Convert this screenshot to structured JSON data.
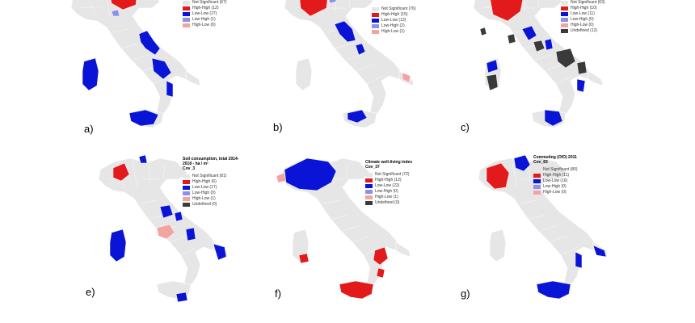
{
  "colors": {
    "not_significant": "#e6e6e6",
    "high_high": "#e31a1c",
    "low_low": "#0a14d6",
    "low_high": "#8a91e8",
    "high_low": "#f4a3a3",
    "undefined": "#3a3a3a"
  },
  "panels": [
    {
      "id": "a",
      "letter": "a)",
      "title": "",
      "subtitle": "",
      "legend": [
        {
          "key": "not_significant",
          "label": "Not Significant (67)"
        },
        {
          "key": "high_high",
          "label": "High-High (12)"
        },
        {
          "key": "low_low",
          "label": "Low-Low (27)"
        },
        {
          "key": "low_high",
          "label": "Low-High (1)"
        },
        {
          "key": "high_low",
          "label": "High-Low (0)"
        }
      ]
    },
    {
      "id": "b",
      "letter": "b)",
      "title": "",
      "subtitle": "",
      "legend": [
        {
          "key": "not_significant",
          "label": "Not Significant (76)"
        },
        {
          "key": "high_high",
          "label": "High-High (15)"
        },
        {
          "key": "low_low",
          "label": "Low-Low (13)"
        },
        {
          "key": "low_high",
          "label": "Low-High (2)"
        },
        {
          "key": "high_low",
          "label": "High-Low (1)"
        }
      ]
    },
    {
      "id": "c",
      "letter": "c)",
      "title": "",
      "subtitle": "",
      "legend": [
        {
          "key": "not_significant",
          "label": "Not Significant (63)"
        },
        {
          "key": "high_high",
          "label": "High-High (10)"
        },
        {
          "key": "low_low",
          "label": "Low-Low (11)"
        },
        {
          "key": "low_high",
          "label": "Low-High (0)"
        },
        {
          "key": "high_low",
          "label": "High-Low (0)"
        },
        {
          "key": "undefined",
          "label": "Undefined (12)"
        }
      ]
    },
    {
      "id": "e",
      "letter": "e)",
      "title": "Soil consumption, total 2014-2018 - ha / m²",
      "subtitle": "Cov_3",
      "legend": [
        {
          "key": "not_significant",
          "label": "Not Significant (81)"
        },
        {
          "key": "high_high",
          "label": "High-High (6)"
        },
        {
          "key": "low_low",
          "label": "Low-Low (17)"
        },
        {
          "key": "low_high",
          "label": "Low-High (0)"
        },
        {
          "key": "high_low",
          "label": "High-Low (1)"
        },
        {
          "key": "undefined",
          "label": "Undefined (0)"
        }
      ]
    },
    {
      "id": "f",
      "letter": "f)",
      "title": "Climate well-living index",
      "subtitle": "Cov_37",
      "legend": [
        {
          "key": "not_significant",
          "label": "Not Significant (72)"
        },
        {
          "key": "high_high",
          "label": "High-High (12)"
        },
        {
          "key": "low_low",
          "label": "Low-Low (22)"
        },
        {
          "key": "low_high",
          "label": "Low-High (0)"
        },
        {
          "key": "high_low",
          "label": "High-Low (1)"
        },
        {
          "key": "undefined",
          "label": "Undefined (0)"
        }
      ]
    },
    {
      "id": "g",
      "letter": "g)",
      "title": "Commuting (OIO) 2011",
      "subtitle": "Cov_83",
      "legend": [
        {
          "key": "not_significant",
          "label": "Not Significant (80)"
        },
        {
          "key": "high_high",
          "label": "High-High (11)"
        },
        {
          "key": "low_low",
          "label": "Low-Low (16)"
        },
        {
          "key": "low_high",
          "label": "Low-High (0)"
        },
        {
          "key": "high_low",
          "label": "High-Low (0)"
        }
      ]
    }
  ]
}
